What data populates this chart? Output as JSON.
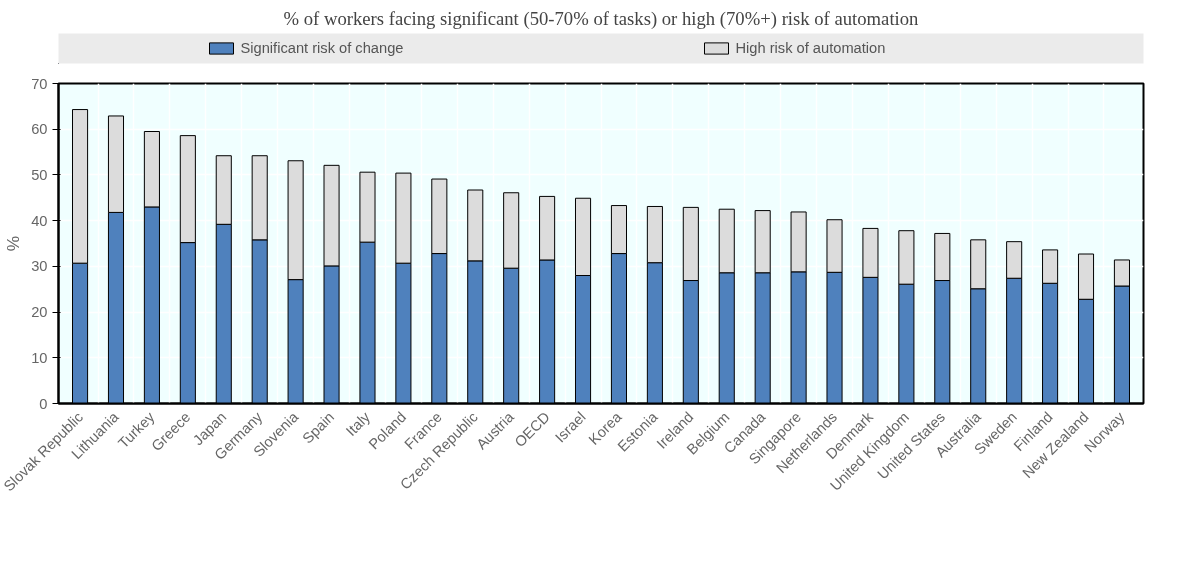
{
  "chart_data": {
    "type": "bar",
    "title": "% of workers facing significant (50-70% of tasks) or high (70%+) risk of automation",
    "ylabel": "%",
    "categories": [
      "Slovak Republic",
      "Lithuania",
      "Turkey",
      "Greece",
      "Japan",
      "Germany",
      "Slovenia",
      "Spain",
      "Italy",
      "Poland",
      "France",
      "Czech Republic",
      "Austria",
      "OECD",
      "Israel",
      "Korea",
      "Estonia",
      "Ireland",
      "Belgium",
      "Canada",
      "Singapore",
      "Netherlands",
      "Denmark",
      "United Kingdom",
      "United States",
      "Australia",
      "Sweden",
      "Finland",
      "New Zealand",
      "Norway"
    ],
    "stacked": true,
    "series": [
      {
        "name": "Significant risk of change",
        "color": "#4f81bd",
        "values": [
          30.7,
          41.8,
          43.0,
          35.2,
          39.2,
          35.8,
          27.1,
          30.1,
          35.3,
          30.7,
          32.8,
          31.2,
          29.6,
          31.4,
          28.0,
          32.8,
          30.8,
          26.9,
          28.6,
          28.6,
          28.8,
          28.7,
          27.6,
          26.1,
          26.9,
          25.1,
          27.4,
          26.3,
          22.8,
          25.7
        ]
      },
      {
        "name": "High risk of automation",
        "color": "#dcdcdc",
        "values": [
          33.6,
          21.1,
          16.5,
          23.4,
          15.0,
          18.4,
          26.0,
          22.0,
          15.3,
          19.7,
          16.3,
          15.5,
          16.5,
          13.9,
          16.9,
          10.5,
          12.3,
          16.0,
          13.9,
          13.6,
          13.1,
          11.5,
          10.7,
          11.7,
          10.3,
          10.7,
          8.0,
          7.3,
          9.9,
          5.7
        ]
      }
    ],
    "ylim": [
      0,
      70
    ],
    "yticks": [
      0,
      10,
      20,
      30,
      40,
      50,
      60,
      70
    ],
    "grid": true,
    "legend": "top"
  }
}
